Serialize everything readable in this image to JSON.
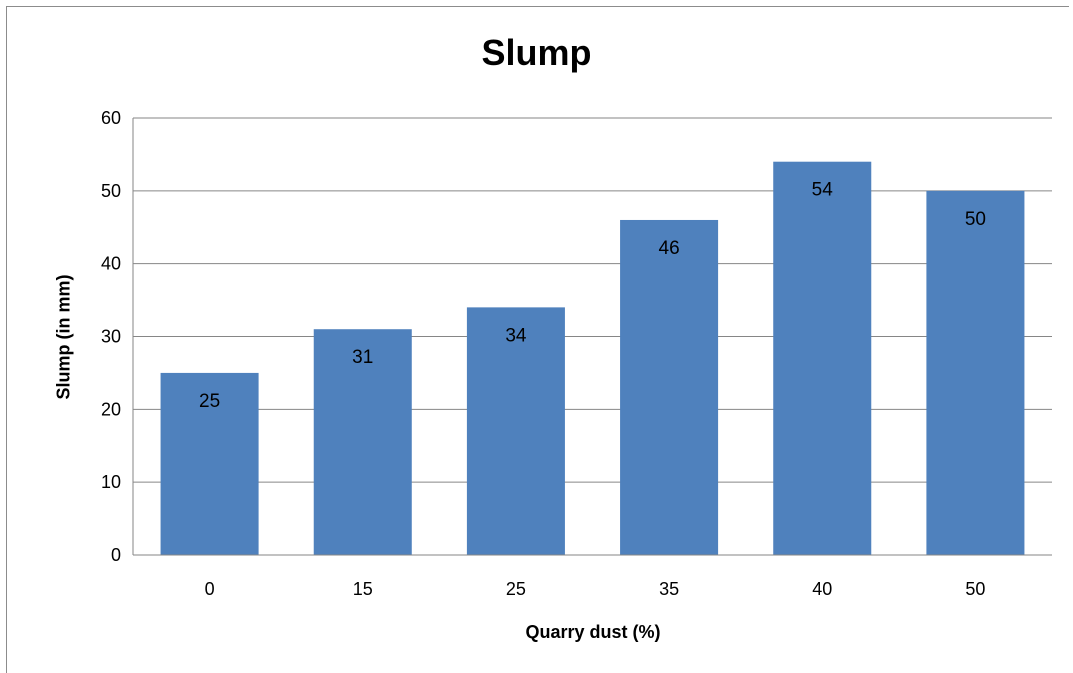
{
  "chart_data": {
    "type": "bar",
    "title": "Slump",
    "xlabel": "Quarry dust (%)",
    "ylabel": "Slump (in mm)",
    "categories": [
      "0",
      "15",
      "25",
      "35",
      "40",
      "50"
    ],
    "values": [
      25,
      31,
      34,
      46,
      54,
      50
    ],
    "data_labels": [
      "25",
      "31",
      "34",
      "46",
      "54",
      "50"
    ],
    "yticks": [
      "0",
      "10",
      "20",
      "30",
      "40",
      "50",
      "60"
    ],
    "ylim": [
      0,
      60
    ],
    "grid": true,
    "legend": "none",
    "colors": {
      "bar": "#4f81bd",
      "grid": "#868686",
      "axis": "#868686"
    }
  }
}
